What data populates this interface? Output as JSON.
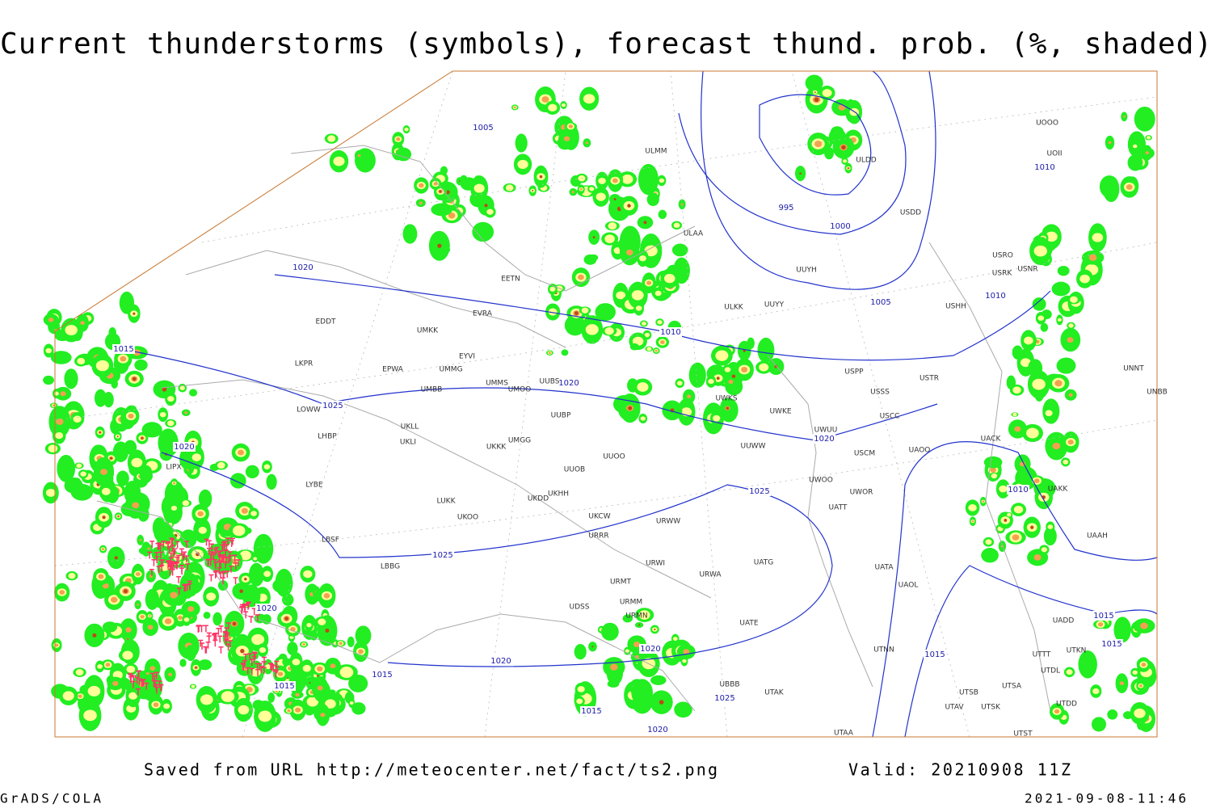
{
  "title": "Current thunderstorms (symbols), forecast thund. prob. (%, shaded)",
  "source": "Saved from URL http://meteocenter.net/fact/ts2.png",
  "valid": "Valid: 20210908 11Z",
  "credit": "GrADS/COLA",
  "timestamp": "2021-09-08-11:46",
  "isobar_labels": [
    "1005",
    "995",
    "1000",
    "1005",
    "1010",
    "1010",
    "1015",
    "1020",
    "1025",
    "1020",
    "1020",
    "1020",
    "1025",
    "1015",
    "1020",
    "1025",
    "1020",
    "1015",
    "1015",
    "1025",
    "1020",
    "1015",
    "1010",
    "1015",
    "1015",
    "1020",
    "1010"
  ],
  "stations": [
    "ULMM",
    "ULDD",
    "USDD",
    "UUYH",
    "ULKK",
    "UUYY",
    "USHH",
    "USRK",
    "USNR",
    "USRO",
    "UOOO",
    "UOII",
    "USPP",
    "USSS",
    "USTR",
    "USCC",
    "USCM",
    "UAOO",
    "UWOO",
    "UWOR",
    "UATT",
    "UATA",
    "UAOL",
    "UNNT",
    "UNBB",
    "UAKK",
    "UACK",
    "UAAH",
    "UADD",
    "UTTT",
    "UTKN",
    "UTDL",
    "UTSA",
    "UTSB",
    "UTAV",
    "UTSK",
    "UTDD",
    "UTST",
    "UTAA",
    "UTAK",
    "UBBB",
    "EDDT",
    "EPWA",
    "EYVI",
    "UMMG",
    "UMKK",
    "UMMS",
    "UMOO",
    "UUBS",
    "UMBB",
    "LKPR",
    "LOWW",
    "LHBP",
    "LYBE",
    "LBSF",
    "LBBG",
    "UKLL",
    "UKLI",
    "UKKK",
    "UUOO",
    "UUOB",
    "UKHH",
    "UKDD",
    "UKOO",
    "LUKK",
    "UKCW",
    "URRR",
    "URWW",
    "URWI",
    "URMT",
    "URMM",
    "URMN",
    "UDSS",
    "URWA",
    "UATG",
    "UATE",
    "UUWW",
    "UWKS",
    "UWKE",
    "UWUU",
    "LIPX",
    "EETN",
    "EVRA",
    "ULAA",
    "UMGG",
    "UUBP",
    "UTNN"
  ]
}
